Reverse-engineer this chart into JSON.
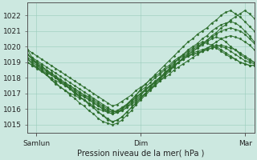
{
  "bg_color": "#cce8e0",
  "grid_color": "#99ccbb",
  "line_color": "#2d6e2d",
  "xlabel": "Pression niveau de la mer( hPa )",
  "ylim": [
    1014.5,
    1022.8
  ],
  "yticks": [
    1015,
    1016,
    1017,
    1018,
    1019,
    1020,
    1021,
    1022
  ],
  "xtick_labels": [
    "Samlun",
    "Dim",
    "Mar"
  ],
  "xtick_pos": [
    0.04,
    0.5,
    0.96
  ],
  "n_steps": 49,
  "series": [
    [
      1019.5,
      1019.2,
      1019.0,
      1018.8,
      1018.5,
      1018.3,
      1018.1,
      1017.8,
      1017.6,
      1017.3,
      1017.1,
      1016.8,
      1016.6,
      1016.3,
      1016.1,
      1015.8,
      1015.6,
      1015.3,
      1015.2,
      1015.3,
      1015.5,
      1015.8,
      1016.1,
      1016.4,
      1016.7,
      1017.0,
      1017.3,
      1017.6,
      1017.9,
      1018.2,
      1018.5,
      1018.8,
      1019.0,
      1019.2,
      1019.4,
      1019.5,
      1019.6,
      1019.7,
      1019.8,
      1019.9,
      1020.0,
      1020.1,
      1020.0,
      1019.9,
      1019.8,
      1019.6,
      1019.4,
      1019.2,
      1019.0
    ],
    [
      1019.2,
      1018.9,
      1018.7,
      1018.4,
      1018.2,
      1017.9,
      1017.7,
      1017.4,
      1017.2,
      1016.9,
      1016.7,
      1016.4,
      1016.2,
      1015.9,
      1015.7,
      1015.4,
      1015.2,
      1015.1,
      1015.0,
      1015.1,
      1015.3,
      1015.6,
      1015.9,
      1016.3,
      1016.6,
      1016.9,
      1017.2,
      1017.5,
      1017.8,
      1018.1,
      1018.4,
      1018.7,
      1019.0,
      1019.3,
      1019.5,
      1019.7,
      1019.9,
      1020.1,
      1020.3,
      1020.5,
      1020.6,
      1020.5,
      1020.3,
      1020.0,
      1019.8,
      1019.5,
      1019.3,
      1019.1,
      1019.0
    ],
    [
      1019.0,
      1018.8,
      1018.6,
      1018.4,
      1018.2,
      1018.0,
      1017.8,
      1017.7,
      1017.5,
      1017.3,
      1017.1,
      1016.9,
      1016.8,
      1016.6,
      1016.4,
      1016.2,
      1016.0,
      1015.9,
      1015.8,
      1015.9,
      1016.1,
      1016.3,
      1016.5,
      1016.8,
      1017.0,
      1017.3,
      1017.5,
      1017.8,
      1018.0,
      1018.3,
      1018.5,
      1018.8,
      1019.0,
      1019.2,
      1019.4,
      1019.5,
      1019.6,
      1019.7,
      1019.8,
      1019.9,
      1020.0,
      1019.8,
      1019.6,
      1019.4,
      1019.2,
      1019.0,
      1018.9,
      1018.8,
      1018.8
    ],
    [
      1019.3,
      1019.1,
      1018.9,
      1018.7,
      1018.5,
      1018.3,
      1018.1,
      1017.9,
      1017.7,
      1017.5,
      1017.3,
      1017.1,
      1016.9,
      1016.7,
      1016.5,
      1016.3,
      1016.1,
      1015.9,
      1015.8,
      1015.9,
      1016.1,
      1016.3,
      1016.6,
      1016.9,
      1017.2,
      1017.4,
      1017.7,
      1018.0,
      1018.2,
      1018.5,
      1018.7,
      1019.0,
      1019.2,
      1019.4,
      1019.6,
      1019.8,
      1020.0,
      1020.2,
      1020.4,
      1020.6,
      1020.8,
      1021.0,
      1021.1,
      1021.2,
      1021.1,
      1021.0,
      1020.8,
      1020.5,
      1020.2
    ],
    [
      1019.5,
      1019.3,
      1019.1,
      1018.9,
      1018.7,
      1018.5,
      1018.3,
      1018.1,
      1017.9,
      1017.7,
      1017.5,
      1017.3,
      1017.1,
      1016.9,
      1016.7,
      1016.5,
      1016.3,
      1016.1,
      1015.9,
      1015.8,
      1015.9,
      1016.1,
      1016.4,
      1016.6,
      1016.9,
      1017.2,
      1017.5,
      1017.7,
      1018.0,
      1018.3,
      1018.5,
      1018.8,
      1019.0,
      1019.3,
      1019.5,
      1019.7,
      1019.9,
      1020.2,
      1020.4,
      1020.7,
      1020.9,
      1021.2,
      1021.4,
      1021.7,
      1021.9,
      1022.1,
      1022.3,
      1022.1,
      1021.8
    ],
    [
      1019.0,
      1018.8,
      1018.7,
      1018.5,
      1018.3,
      1018.2,
      1018.0,
      1017.8,
      1017.6,
      1017.5,
      1017.3,
      1017.1,
      1016.9,
      1016.8,
      1016.6,
      1016.4,
      1016.2,
      1016.0,
      1015.9,
      1015.8,
      1015.9,
      1016.1,
      1016.3,
      1016.5,
      1016.8,
      1017.0,
      1017.3,
      1017.5,
      1017.8,
      1018.0,
      1018.2,
      1018.5,
      1018.7,
      1018.9,
      1019.1,
      1019.3,
      1019.5,
      1019.7,
      1019.9,
      1020.1,
      1020.3,
      1020.5,
      1020.6,
      1020.7,
      1020.6,
      1020.5,
      1020.3,
      1020.1,
      1019.8
    ],
    [
      1019.8,
      1019.3,
      1018.9,
      1018.5,
      1018.2,
      1017.9,
      1017.6,
      1017.4,
      1017.2,
      1017.0,
      1016.9,
      1016.7,
      1016.6,
      1016.4,
      1016.2,
      1016.0,
      1015.9,
      1015.8,
      1015.7,
      1015.8,
      1016.0,
      1016.3,
      1016.6,
      1016.9,
      1017.3,
      1017.6,
      1017.9,
      1018.2,
      1018.5,
      1018.8,
      1019.1,
      1019.4,
      1019.7,
      1020.0,
      1020.3,
      1020.5,
      1020.8,
      1021.0,
      1021.2,
      1021.5,
      1021.7,
      1022.0,
      1022.2,
      1022.3,
      1022.1,
      1021.9,
      1021.6,
      1021.3,
      1021.0
    ],
    [
      1019.5,
      1019.2,
      1018.9,
      1018.7,
      1018.5,
      1018.2,
      1018.0,
      1017.7,
      1017.5,
      1017.3,
      1017.0,
      1016.8,
      1016.6,
      1016.3,
      1016.1,
      1015.8,
      1015.6,
      1015.4,
      1015.2,
      1015.3,
      1015.5,
      1015.8,
      1016.1,
      1016.4,
      1016.7,
      1017.0,
      1017.4,
      1017.7,
      1018.0,
      1018.3,
      1018.6,
      1018.9,
      1019.2,
      1019.5,
      1019.7,
      1019.9,
      1020.1,
      1020.3,
      1020.2,
      1020.1,
      1019.9,
      1019.7,
      1019.5,
      1019.3,
      1019.2,
      1019.0,
      1018.9,
      1018.8,
      1018.8
    ],
    [
      1019.2,
      1019.0,
      1018.8,
      1018.6,
      1018.4,
      1018.2,
      1018.0,
      1017.8,
      1017.6,
      1017.4,
      1017.2,
      1017.0,
      1016.8,
      1016.6,
      1016.4,
      1016.2,
      1016.0,
      1015.8,
      1015.7,
      1015.8,
      1016.0,
      1016.2,
      1016.5,
      1016.7,
      1017.0,
      1017.2,
      1017.5,
      1017.7,
      1018.0,
      1018.2,
      1018.5,
      1018.7,
      1019.0,
      1019.2,
      1019.4,
      1019.6,
      1019.7,
      1019.8,
      1019.9,
      1020.0,
      1020.1,
      1020.0,
      1019.9,
      1019.7,
      1019.5,
      1019.3,
      1019.1,
      1019.0,
      1018.9
    ],
    [
      1019.8,
      1019.6,
      1019.4,
      1019.2,
      1019.0,
      1018.8,
      1018.6,
      1018.4,
      1018.2,
      1018.0,
      1017.8,
      1017.6,
      1017.4,
      1017.2,
      1017.0,
      1016.8,
      1016.6,
      1016.4,
      1016.2,
      1016.3,
      1016.5,
      1016.7,
      1016.9,
      1017.2,
      1017.4,
      1017.6,
      1017.9,
      1018.1,
      1018.3,
      1018.6,
      1018.8,
      1019.1,
      1019.3,
      1019.5,
      1019.8,
      1020.0,
      1020.2,
      1020.5,
      1020.7,
      1021.0,
      1021.2,
      1021.4,
      1021.5,
      1021.6,
      1021.5,
      1021.3,
      1021.0,
      1020.7,
      1020.3
    ]
  ]
}
